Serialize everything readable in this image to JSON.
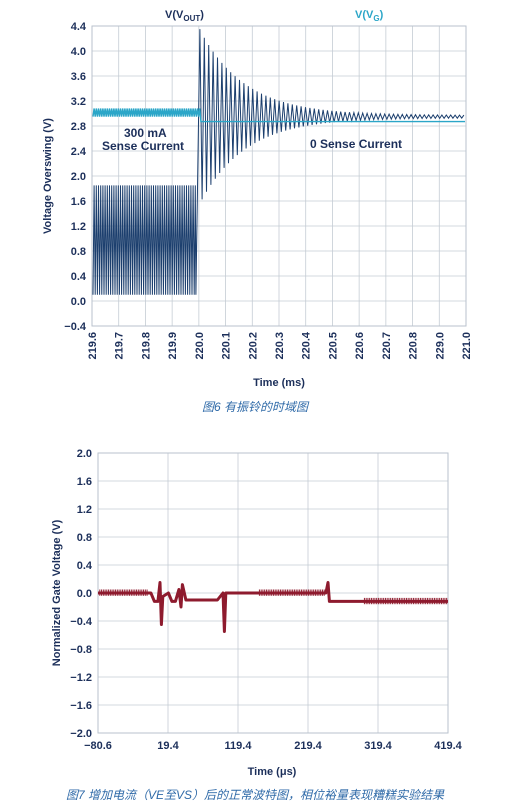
{
  "chart_data": [
    {
      "type": "line",
      "title_vout_main": "V(V",
      "title_vout_sub": "OUT",
      "title_vout_close": ")",
      "title_vg_main": "V(V",
      "title_vg_sub": "G",
      "title_vg_close": ")",
      "xlabel": "Time (ms)",
      "ylabel": "Voltage Overswing (V)",
      "ylim": [
        -0.4,
        4.4
      ],
      "yticks": [
        "4.4",
        "4.0",
        "3.6",
        "3.2",
        "2.8",
        "2.4",
        "2.0",
        "1.6",
        "1.2",
        "0.8",
        "0.4",
        "0.0",
        "−0.4"
      ],
      "xticks": [
        "219.6",
        "219.7",
        "219.8",
        "219.9",
        "220.0",
        "220.1",
        "220.2",
        "220.3",
        "220.4",
        "220.5",
        "220.6",
        "220.7",
        "220.8",
        "229.0",
        "221.0"
      ],
      "annotation_left_1": "300 mA",
      "annotation_left_2": "Sense Current",
      "annotation_right": "0 Sense Current",
      "series": [
        {
          "color": "#1c3f6e",
          "before": {
            "low": 0.1,
            "high": 1.85
          },
          "after_start": 4.35,
          "after_settle": 2.95
        },
        {
          "color": "#2ba6c8",
          "before": {
            "low": 2.95,
            "high": 3.08
          },
          "after_level": 2.87
        }
      ],
      "caption": "图6 有振铃的时域图"
    },
    {
      "type": "line",
      "xlabel": "Time (μs)",
      "ylabel": "Normalized Gate Voltage (V)",
      "ylim": [
        -2.0,
        2.0
      ],
      "xlim": [
        -80.6,
        419.4
      ],
      "yticks": [
        "2.0",
        "1.6",
        "1.2",
        "0.8",
        "0.4",
        "0.0",
        "−0.4",
        "−0.8",
        "−1.2",
        "−1.6",
        "−2.0"
      ],
      "xticks": [
        "−80.6",
        "19.4",
        "119.4",
        "219.4",
        "319.4",
        "419.4"
      ],
      "series": [
        {
          "color": "#8e1b2e",
          "points": [
            [
              -80.6,
              0.0
            ],
            [
              -5,
              0.0
            ],
            [
              0,
              -0.12
            ],
            [
              5,
              -0.12
            ],
            [
              8,
              0.15
            ],
            [
              10,
              -0.45
            ],
            [
              12,
              -0.05
            ],
            [
              20,
              0.0
            ],
            [
              25,
              -0.12
            ],
            [
              30,
              -0.12
            ],
            [
              35,
              0.05
            ],
            [
              38,
              -0.2
            ],
            [
              40,
              0.12
            ],
            [
              45,
              -0.1
            ],
            [
              50,
              -0.1
            ],
            [
              60,
              -0.1
            ],
            [
              80,
              -0.1
            ],
            [
              90,
              -0.1
            ],
            [
              98,
              0.0
            ],
            [
              100,
              -0.55
            ],
            [
              102,
              0.0
            ],
            [
              150,
              0.0
            ],
            [
              200,
              0.0
            ],
            [
              245,
              0.0
            ],
            [
              248,
              0.15
            ],
            [
              250,
              -0.12
            ],
            [
              300,
              -0.12
            ],
            [
              350,
              -0.12
            ],
            [
              419.4,
              -0.12
            ]
          ]
        }
      ],
      "caption": "图7 增加电流（VE至VS）后的正常波特图，相位裕量表现糟糕实验结果"
    }
  ]
}
